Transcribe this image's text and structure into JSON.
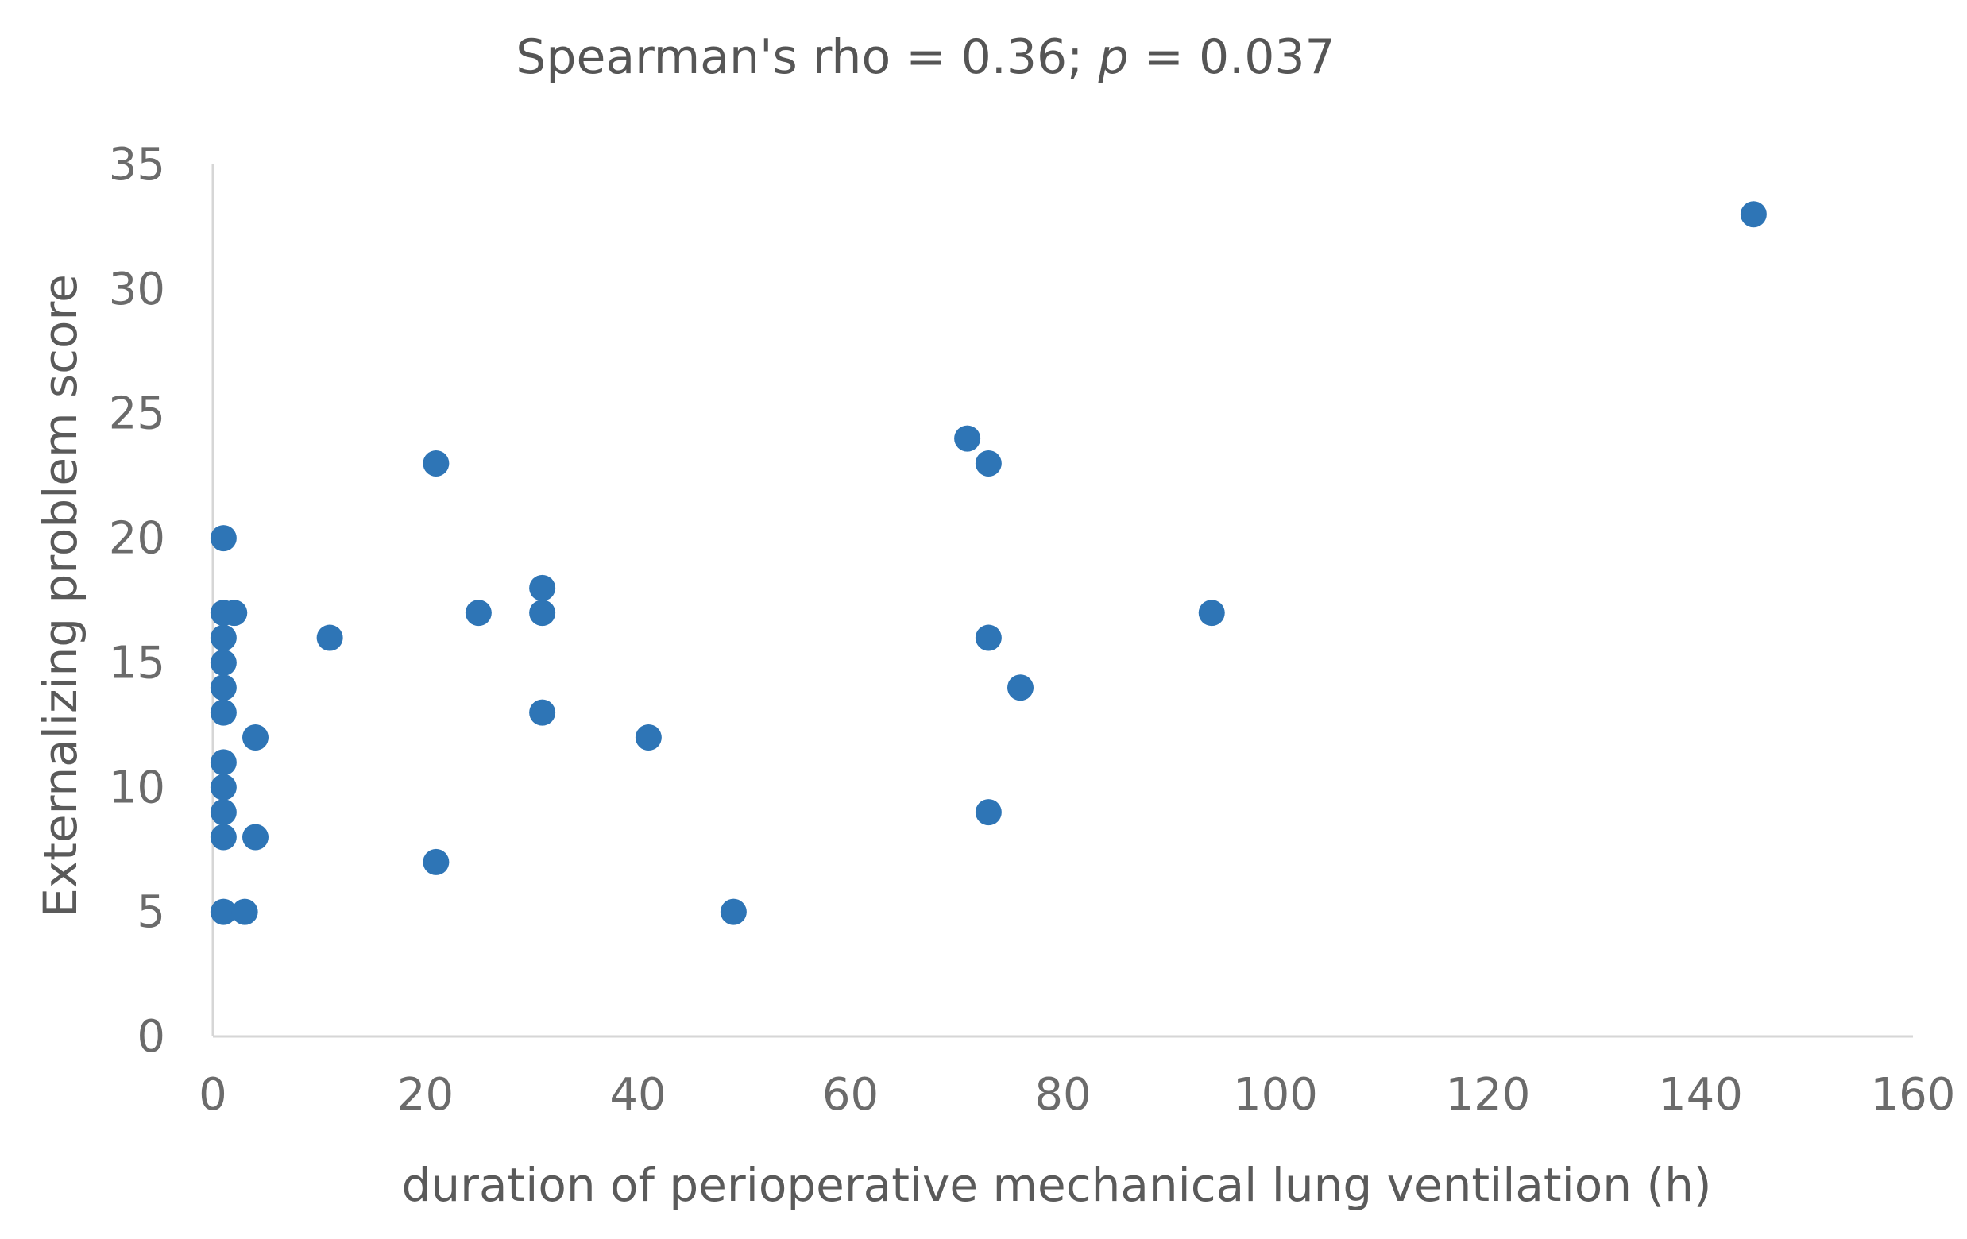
{
  "chart_data": {
    "type": "scatter",
    "title_main": "Spearman's rho = 0.36; ",
    "title_italic": "p",
    "title_tail": " = 0.037",
    "xlabel": "duration of perioperative mechanical lung ventilation (h)",
    "ylabel": "Externalizing problem score",
    "xlim": [
      0,
      160
    ],
    "ylim": [
      0,
      35
    ],
    "xticks": [
      0,
      20,
      40,
      60,
      80,
      100,
      120,
      140,
      160
    ],
    "yticks": [
      0,
      5,
      10,
      15,
      20,
      25,
      30,
      35
    ],
    "grid": false,
    "legend": "none",
    "marker_color": "#2E75B6",
    "points": [
      {
        "x": 1,
        "y": 20
      },
      {
        "x": 1,
        "y": 17
      },
      {
        "x": 2,
        "y": 17
      },
      {
        "x": 1,
        "y": 16
      },
      {
        "x": 1,
        "y": 15
      },
      {
        "x": 1,
        "y": 14
      },
      {
        "x": 1,
        "y": 13
      },
      {
        "x": 1,
        "y": 11
      },
      {
        "x": 1,
        "y": 10
      },
      {
        "x": 1,
        "y": 9
      },
      {
        "x": 1,
        "y": 8
      },
      {
        "x": 1,
        "y": 5
      },
      {
        "x": 3,
        "y": 5
      },
      {
        "x": 4,
        "y": 12
      },
      {
        "x": 4,
        "y": 8
      },
      {
        "x": 11,
        "y": 16
      },
      {
        "x": 21,
        "y": 23
      },
      {
        "x": 21,
        "y": 7
      },
      {
        "x": 25,
        "y": 17
      },
      {
        "x": 31,
        "y": 18
      },
      {
        "x": 31,
        "y": 17
      },
      {
        "x": 31,
        "y": 13
      },
      {
        "x": 41,
        "y": 12
      },
      {
        "x": 49,
        "y": 5
      },
      {
        "x": 71,
        "y": 24
      },
      {
        "x": 73,
        "y": 23
      },
      {
        "x": 73,
        "y": 16
      },
      {
        "x": 73,
        "y": 9
      },
      {
        "x": 76,
        "y": 14
      },
      {
        "x": 94,
        "y": 17
      },
      {
        "x": 145,
        "y": 33
      }
    ]
  }
}
